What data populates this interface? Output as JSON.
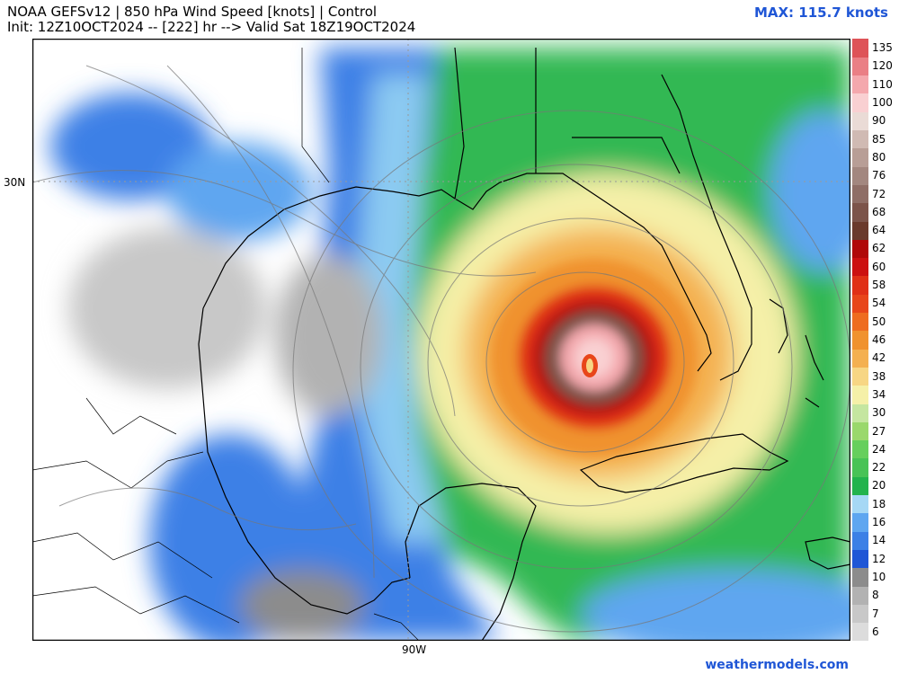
{
  "header": {
    "title_line1": "NOAA GEFSv12 | 850 hPa Wind Speed [knots] | Control",
    "title_line2": "Init: 12Z10OCT2024 -- [222] hr --> Valid Sat 18Z19OCT2024",
    "max_label": "MAX: 115.7 knots"
  },
  "map": {
    "lat_label": "30N",
    "lon_label": "90W",
    "storm_max_knots": 115.7
  },
  "footer": {
    "brand": "weathermodels.com"
  },
  "colors": {
    "accent": "#1f56d6"
  },
  "legend": {
    "labels": [
      "6",
      "7",
      "8",
      "10",
      "12",
      "14",
      "16",
      "18",
      "20",
      "22",
      "24",
      "27",
      "30",
      "34",
      "38",
      "42",
      "46",
      "50",
      "54",
      "58",
      "60",
      "62",
      "64",
      "68",
      "72",
      "76",
      "80",
      "85",
      "90",
      "100",
      "110",
      "120",
      "135"
    ],
    "colors": [
      "#dcdcdc",
      "#c8c8c8",
      "#b2b2b2",
      "#8c8c8c",
      "#1f56d6",
      "#3c80e6",
      "#5ea6f0",
      "#a6d8f5",
      "#23b34d",
      "#48c356",
      "#66cf5d",
      "#9ad86c",
      "#c5e6a0",
      "#f5f0a8",
      "#f7d684",
      "#f4b050",
      "#f0922e",
      "#ee6c20",
      "#e8461a",
      "#e03016",
      "#cc1010",
      "#b00808",
      "#6a3a2c",
      "#7c544a",
      "#8f6e66",
      "#a3877f",
      "#b89e96",
      "#d0bab3",
      "#eadbd6",
      "#f9d0d2",
      "#f4a8ad",
      "#ea7f85",
      "#de5358"
    ]
  }
}
